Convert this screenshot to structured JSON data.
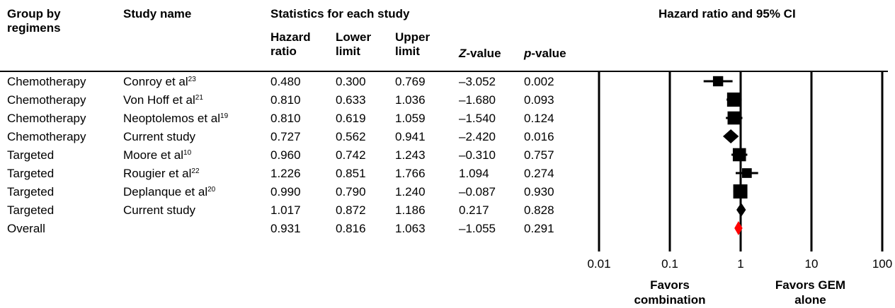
{
  "headers": {
    "group": "Group by regimens",
    "study": "Study name",
    "stats_title": "Statistics for each study",
    "hr": "Hazard ratio",
    "lower": "Lower limit",
    "upper": "Upper limit",
    "z_label": "Z",
    "z_suffix": "-value",
    "p_label": "p",
    "p_suffix": "-value",
    "plot_title": "Hazard ratio and 95% CI"
  },
  "rows": [
    {
      "group": "Chemotherapy",
      "study": "Conroy et al",
      "ref": "23",
      "hr": "0.480",
      "lower": "0.300",
      "upper": "0.769",
      "z": "–3.052",
      "p": "0.002"
    },
    {
      "group": "Chemotherapy",
      "study": "Von Hoff et al",
      "ref": "21",
      "hr": "0.810",
      "lower": "0.633",
      "upper": "1.036",
      "z": "–1.680",
      "p": "0.093"
    },
    {
      "group": "Chemotherapy",
      "study": "Neoptolemos et al",
      "ref": "19",
      "hr": "0.810",
      "lower": "0.619",
      "upper": "1.059",
      "z": "–1.540",
      "p": "0.124"
    },
    {
      "group": "Chemotherapy",
      "study": "Current study",
      "ref": "",
      "hr": "0.727",
      "lower": "0.562",
      "upper": "0.941",
      "z": "–2.420",
      "p": "0.016"
    },
    {
      "group": "Targeted",
      "study": "Moore et al",
      "ref": "10",
      "hr": "0.960",
      "lower": "0.742",
      "upper": "1.243",
      "z": "–0.310",
      "p": "0.757"
    },
    {
      "group": "Targeted",
      "study": "Rougier et al",
      "ref": "22",
      "hr": "1.226",
      "lower": "0.851",
      "upper": "1.766",
      "z": "1.094",
      "p": "0.274"
    },
    {
      "group": "Targeted",
      "study": "Deplanque et al",
      "ref": "20",
      "hr": "0.990",
      "lower": "0.790",
      "upper": "1.240",
      "z": "–0.087",
      "p": "0.930"
    },
    {
      "group": "Targeted",
      "study": "Current study",
      "ref": "",
      "hr": "1.017",
      "lower": "0.872",
      "upper": "1.186",
      "z": "0.217",
      "p": "0.828"
    },
    {
      "group": "Overall",
      "study": "",
      "ref": "",
      "hr": "0.931",
      "lower": "0.816",
      "upper": "1.063",
      "z": "–1.055",
      "p": "0.291"
    }
  ],
  "chart_data": {
    "type": "forest",
    "scale": "log",
    "xlim": [
      0.01,
      100
    ],
    "ticks": [
      "0.01",
      "0.1",
      "1",
      "10",
      "100"
    ],
    "reference_line": 1,
    "left_label": "Favors combination",
    "right_label": "Favors GEM alone",
    "marker_colors": {
      "study": "#000000",
      "subtotal": "#000000",
      "overall": "#ff0000"
    },
    "points": [
      {
        "hr": 0.48,
        "lower": 0.3,
        "upper": 0.769,
        "marker": "square",
        "weight": 0.6
      },
      {
        "hr": 0.81,
        "lower": 0.633,
        "upper": 1.036,
        "marker": "square",
        "weight": 1.0
      },
      {
        "hr": 0.81,
        "lower": 0.619,
        "upper": 1.059,
        "marker": "square",
        "weight": 0.9
      },
      {
        "hr": 0.727,
        "lower": 0.562,
        "upper": 0.941,
        "marker": "diamond",
        "weight": 1.0
      },
      {
        "hr": 0.96,
        "lower": 0.742,
        "upper": 1.243,
        "marker": "square",
        "weight": 0.9
      },
      {
        "hr": 1.226,
        "lower": 0.851,
        "upper": 1.766,
        "marker": "square",
        "weight": 0.55
      },
      {
        "hr": 0.99,
        "lower": 0.79,
        "upper": 1.24,
        "marker": "square",
        "weight": 1.0
      },
      {
        "hr": 1.017,
        "lower": 0.872,
        "upper": 1.186,
        "marker": "diamond",
        "weight": 1.0
      },
      {
        "hr": 0.931,
        "lower": 0.816,
        "upper": 1.063,
        "marker": "diamond",
        "weight": 1.0
      }
    ]
  }
}
